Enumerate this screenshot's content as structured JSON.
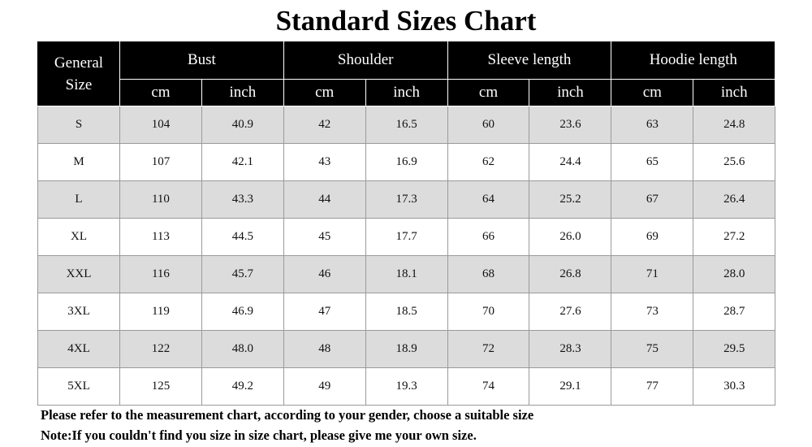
{
  "header": {
    "title": "Standard Sizes Chart"
  },
  "table": {
    "corner": "General Size",
    "groups": [
      {
        "label": "Bust",
        "units": [
          "cm",
          "inch"
        ]
      },
      {
        "label": "Shoulder",
        "units": [
          "cm",
          "inch"
        ]
      },
      {
        "label": "Sleeve length",
        "units": [
          "cm",
          "inch"
        ]
      },
      {
        "label": "Hoodie length",
        "units": [
          "cm",
          "inch"
        ]
      }
    ],
    "rows": [
      [
        "S",
        "104",
        "40.9",
        "42",
        "16.5",
        "60",
        "23.6",
        "63",
        "24.8"
      ],
      [
        "M",
        "107",
        "42.1",
        "43",
        "16.9",
        "62",
        "24.4",
        "65",
        "25.6"
      ],
      [
        "L",
        "110",
        "43.3",
        "44",
        "17.3",
        "64",
        "25.2",
        "67",
        "26.4"
      ],
      [
        "XL",
        "113",
        "44.5",
        "45",
        "17.7",
        "66",
        "26.0",
        "69",
        "27.2"
      ],
      [
        "XXL",
        "116",
        "45.7",
        "46",
        "18.1",
        "68",
        "26.8",
        "71",
        "28.0"
      ],
      [
        "3XL",
        "119",
        "46.9",
        "47",
        "18.5",
        "70",
        "27.6",
        "73",
        "28.7"
      ],
      [
        "4XL",
        "122",
        "48.0",
        "48",
        "18.9",
        "72",
        "28.3",
        "75",
        "29.5"
      ],
      [
        "5XL",
        "125",
        "49.2",
        "49",
        "19.3",
        "74",
        "29.1",
        "77",
        "30.3"
      ]
    ]
  },
  "notes": [
    "Please refer to the measurement chart, according to your gender, choose a suitable size",
    "Note:If you couldn't find you size in size chart, please give me your own size."
  ]
}
